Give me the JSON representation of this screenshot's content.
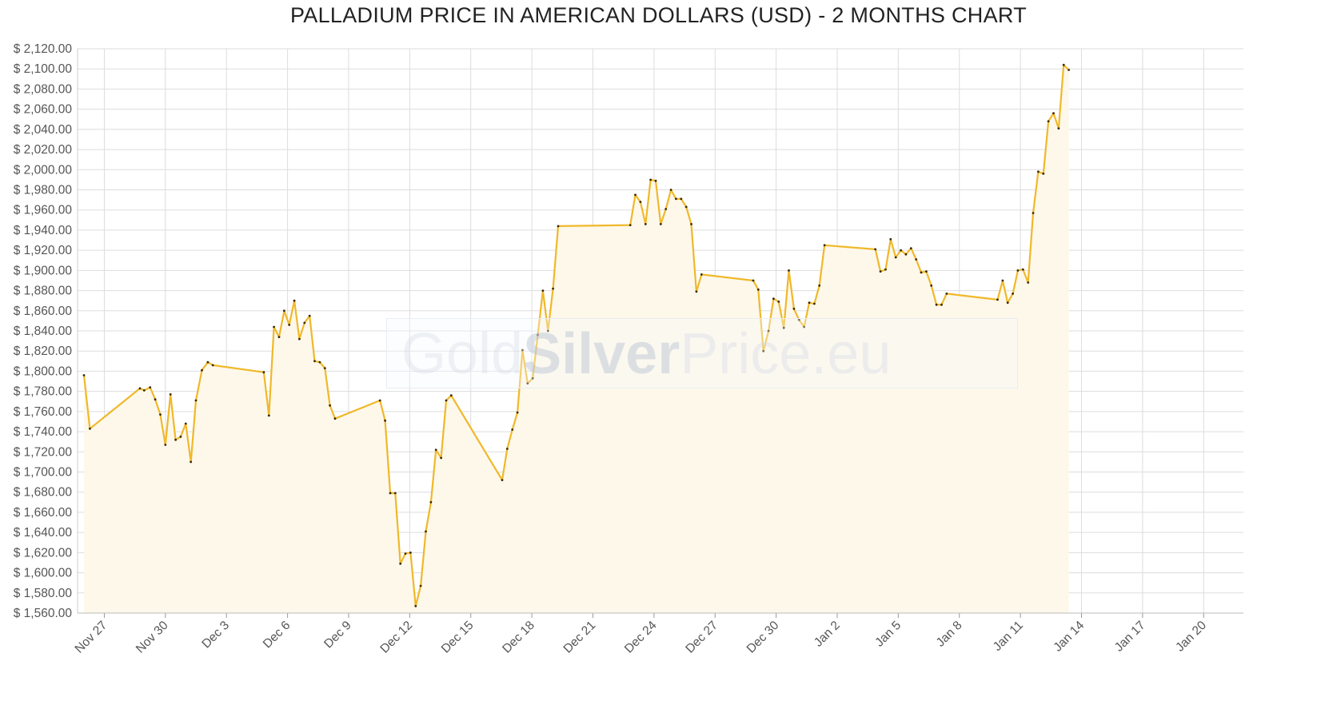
{
  "title": "PALLADIUM PRICE IN AMERICAN DOLLARS (USD) - 2 MONTHS CHART",
  "watermark": {
    "part1": "Gold",
    "part2": "Silver",
    "part3": "Price.eu"
  },
  "colors": {
    "line": "#f0b82a",
    "area": "#fdf8ea",
    "marker": "#3a2a00",
    "grid": "#dddddd",
    "axis_text": "#555555"
  },
  "chart_data": {
    "type": "area",
    "title": "PALLADIUM PRICE IN AMERICAN DOLLARS (USD) - 2 MONTHS CHART",
    "xlabel": "",
    "ylabel": "",
    "ylim": [
      1560,
      2120
    ],
    "xlim": [
      "2019-11-26T00:00",
      "2020-01-21T21:00"
    ],
    "y_tick_values": [
      1560,
      1580,
      1600,
      1620,
      1640,
      1660,
      1680,
      1700,
      1720,
      1740,
      1760,
      1780,
      1800,
      1820,
      1840,
      1860,
      1880,
      1900,
      1920,
      1940,
      1960,
      1980,
      2000,
      2020,
      2040,
      2060,
      2080,
      2100,
      2120
    ],
    "y_tick_labels": [
      "$ 1,560.00",
      "$ 1,580.00",
      "$ 1,600.00",
      "$ 1,620.00",
      "$ 1,640.00",
      "$ 1,660.00",
      "$ 1,680.00",
      "$ 1,700.00",
      "$ 1,720.00",
      "$ 1,740.00",
      "$ 1,760.00",
      "$ 1,780.00",
      "$ 1,800.00",
      "$ 1,820.00",
      "$ 1,840.00",
      "$ 1,860.00",
      "$ 1,880.00",
      "$ 1,900.00",
      "$ 1,920.00",
      "$ 1,940.00",
      "$ 1,960.00",
      "$ 1,980.00",
      "$ 2,000.00",
      "$ 2,020.00",
      "$ 2,040.00",
      "$ 2,060.00",
      "$ 2,080.00",
      "$ 2,100.00",
      "$ 2,120.00"
    ],
    "x_ticks": [
      {
        "date": "2019-11-27",
        "label": "Nov 27"
      },
      {
        "date": "2019-11-30",
        "label": "Nov 30"
      },
      {
        "date": "2019-12-03",
        "label": "Dec 3"
      },
      {
        "date": "2019-12-06",
        "label": "Dec 6"
      },
      {
        "date": "2019-12-09",
        "label": "Dec 9"
      },
      {
        "date": "2019-12-12",
        "label": "Dec 12"
      },
      {
        "date": "2019-12-15",
        "label": "Dec 15"
      },
      {
        "date": "2019-12-18",
        "label": "Dec 18"
      },
      {
        "date": "2019-12-21",
        "label": "Dec 21"
      },
      {
        "date": "2019-12-24",
        "label": "Dec 24"
      },
      {
        "date": "2019-12-27",
        "label": "Dec 27"
      },
      {
        "date": "2019-12-30",
        "label": "Dec 30"
      },
      {
        "date": "2020-01-02",
        "label": "Jan 2"
      },
      {
        "date": "2020-01-05",
        "label": "Jan 5"
      },
      {
        "date": "2020-01-08",
        "label": "Jan 8"
      },
      {
        "date": "2020-01-11",
        "label": "Jan 11"
      },
      {
        "date": "2020-01-14",
        "label": "Jan 14"
      },
      {
        "date": "2020-01-17",
        "label": "Jan 17"
      },
      {
        "date": "2020-01-20",
        "label": "Jan 20"
      }
    ],
    "grid": true,
    "legend": "none",
    "series": [
      {
        "points": [
          {
            "x": "2019-11-26T00:00",
            "y": 1796
          },
          {
            "x": "2019-11-26T07:00",
            "y": 1743
          },
          {
            "x": "2019-11-28T18:00",
            "y": 1783
          },
          {
            "x": "2019-11-28T23:00",
            "y": 1781
          },
          {
            "x": "2019-11-29T06:00",
            "y": 1784
          },
          {
            "x": "2019-11-29T12:00",
            "y": 1772
          },
          {
            "x": "2019-11-29T18:00",
            "y": 1757
          },
          {
            "x": "2019-11-30T00:00",
            "y": 1727
          },
          {
            "x": "2019-11-30T06:00",
            "y": 1777
          },
          {
            "x": "2019-11-30T12:00",
            "y": 1732
          },
          {
            "x": "2019-11-30T18:00",
            "y": 1735
          },
          {
            "x": "2019-12-01T00:00",
            "y": 1748
          },
          {
            "x": "2019-12-01T06:00",
            "y": 1710
          },
          {
            "x": "2019-12-01T12:00",
            "y": 1771
          },
          {
            "x": "2019-12-01T19:00",
            "y": 1801
          },
          {
            "x": "2019-12-02T02:00",
            "y": 1809
          },
          {
            "x": "2019-12-02T08:00",
            "y": 1806
          },
          {
            "x": "2019-12-04T20:00",
            "y": 1799
          },
          {
            "x": "2019-12-05T02:00",
            "y": 1756
          },
          {
            "x": "2019-12-05T08:00",
            "y": 1844
          },
          {
            "x": "2019-12-05T14:00",
            "y": 1834
          },
          {
            "x": "2019-12-05T20:00",
            "y": 1860
          },
          {
            "x": "2019-12-06T02:00",
            "y": 1846
          },
          {
            "x": "2019-12-06T08:00",
            "y": 1870
          },
          {
            "x": "2019-12-06T14:00",
            "y": 1832
          },
          {
            "x": "2019-12-06T20:00",
            "y": 1848
          },
          {
            "x": "2019-12-07T02:00",
            "y": 1855
          },
          {
            "x": "2019-12-07T08:00",
            "y": 1810
          },
          {
            "x": "2019-12-07T14:00",
            "y": 1809
          },
          {
            "x": "2019-12-07T20:00",
            "y": 1803
          },
          {
            "x": "2019-12-08T02:00",
            "y": 1766
          },
          {
            "x": "2019-12-08T08:00",
            "y": 1753
          },
          {
            "x": "2019-12-10T13:00",
            "y": 1771
          },
          {
            "x": "2019-12-10T19:00",
            "y": 1751
          },
          {
            "x": "2019-12-11T01:00",
            "y": 1679
          },
          {
            "x": "2019-12-11T07:00",
            "y": 1679
          },
          {
            "x": "2019-12-11T13:00",
            "y": 1609
          },
          {
            "x": "2019-12-11T19:00",
            "y": 1619
          },
          {
            "x": "2019-12-12T01:00",
            "y": 1620
          },
          {
            "x": "2019-12-12T07:00",
            "y": 1567
          },
          {
            "x": "2019-12-12T13:00",
            "y": 1587
          },
          {
            "x": "2019-12-12T19:00",
            "y": 1641
          },
          {
            "x": "2019-12-13T01:00",
            "y": 1670
          },
          {
            "x": "2019-12-13T07:00",
            "y": 1722
          },
          {
            "x": "2019-12-13T13:00",
            "y": 1714
          },
          {
            "x": "2019-12-13T19:00",
            "y": 1771
          },
          {
            "x": "2019-12-14T01:00",
            "y": 1776
          },
          {
            "x": "2019-12-16T13:00",
            "y": 1692
          },
          {
            "x": "2019-12-16T19:00",
            "y": 1723
          },
          {
            "x": "2019-12-17T01:00",
            "y": 1742
          },
          {
            "x": "2019-12-17T07:00",
            "y": 1759
          },
          {
            "x": "2019-12-17T13:00",
            "y": 1821
          },
          {
            "x": "2019-12-17T19:00",
            "y": 1788
          },
          {
            "x": "2019-12-18T01:00",
            "y": 1793
          },
          {
            "x": "2019-12-18T07:00",
            "y": 1836
          },
          {
            "x": "2019-12-18T13:00",
            "y": 1880
          },
          {
            "x": "2019-12-18T19:00",
            "y": 1840
          },
          {
            "x": "2019-12-19T01:00",
            "y": 1882
          },
          {
            "x": "2019-12-19T07:00",
            "y": 1944
          },
          {
            "x": "2019-12-22T20:00",
            "y": 1945
          },
          {
            "x": "2019-12-23T02:00",
            "y": 1975
          },
          {
            "x": "2019-12-23T08:00",
            "y": 1968
          },
          {
            "x": "2019-12-23T14:00",
            "y": 1946
          },
          {
            "x": "2019-12-23T20:00",
            "y": 1990
          },
          {
            "x": "2019-12-24T02:00",
            "y": 1989
          },
          {
            "x": "2019-12-24T08:00",
            "y": 1946
          },
          {
            "x": "2019-12-24T14:00",
            "y": 1961
          },
          {
            "x": "2019-12-24T20:00",
            "y": 1980
          },
          {
            "x": "2019-12-25T02:00",
            "y": 1971
          },
          {
            "x": "2019-12-25T08:00",
            "y": 1971
          },
          {
            "x": "2019-12-25T14:00",
            "y": 1963
          },
          {
            "x": "2019-12-25T20:00",
            "y": 1946
          },
          {
            "x": "2019-12-26T02:00",
            "y": 1879
          },
          {
            "x": "2019-12-26T08:00",
            "y": 1896
          },
          {
            "x": "2019-12-28T21:00",
            "y": 1890
          },
          {
            "x": "2019-12-29T03:00",
            "y": 1881
          },
          {
            "x": "2019-12-29T09:00",
            "y": 1820
          },
          {
            "x": "2019-12-29T15:00",
            "y": 1840
          },
          {
            "x": "2019-12-29T21:00",
            "y": 1872
          },
          {
            "x": "2019-12-30T03:00",
            "y": 1869
          },
          {
            "x": "2019-12-30T09:00",
            "y": 1843
          },
          {
            "x": "2019-12-30T15:00",
            "y": 1900
          },
          {
            "x": "2019-12-30T21:00",
            "y": 1862
          },
          {
            "x": "2019-12-31T03:00",
            "y": 1851
          },
          {
            "x": "2019-12-31T09:00",
            "y": 1844
          },
          {
            "x": "2019-12-31T15:00",
            "y": 1868
          },
          {
            "x": "2019-12-31T21:00",
            "y": 1867
          },
          {
            "x": "2020-01-01T03:00",
            "y": 1885
          },
          {
            "x": "2020-01-01T09:00",
            "y": 1925
          },
          {
            "x": "2020-01-03T21:00",
            "y": 1921
          },
          {
            "x": "2020-01-04T03:00",
            "y": 1899
          },
          {
            "x": "2020-01-04T09:00",
            "y": 1901
          },
          {
            "x": "2020-01-04T15:00",
            "y": 1931
          },
          {
            "x": "2020-01-04T21:00",
            "y": 1913
          },
          {
            "x": "2020-01-05T03:00",
            "y": 1920
          },
          {
            "x": "2020-01-05T09:00",
            "y": 1916
          },
          {
            "x": "2020-01-05T15:00",
            "y": 1922
          },
          {
            "x": "2020-01-05T21:00",
            "y": 1911
          },
          {
            "x": "2020-01-06T03:00",
            "y": 1898
          },
          {
            "x": "2020-01-06T09:00",
            "y": 1899
          },
          {
            "x": "2020-01-06T15:00",
            "y": 1885
          },
          {
            "x": "2020-01-06T21:00",
            "y": 1866
          },
          {
            "x": "2020-01-07T03:00",
            "y": 1866
          },
          {
            "x": "2020-01-07T09:00",
            "y": 1877
          },
          {
            "x": "2020-01-09T21:00",
            "y": 1871
          },
          {
            "x": "2020-01-10T03:00",
            "y": 1890
          },
          {
            "x": "2020-01-10T09:00",
            "y": 1868
          },
          {
            "x": "2020-01-10T15:00",
            "y": 1877
          },
          {
            "x": "2020-01-10T21:00",
            "y": 1900
          },
          {
            "x": "2020-01-11T03:00",
            "y": 1901
          },
          {
            "x": "2020-01-11T09:00",
            "y": 1888
          },
          {
            "x": "2020-01-11T15:00",
            "y": 1957
          },
          {
            "x": "2020-01-11T21:00",
            "y": 1998
          },
          {
            "x": "2020-01-12T03:00",
            "y": 1996
          },
          {
            "x": "2020-01-12T09:00",
            "y": 2048
          },
          {
            "x": "2020-01-12T15:00",
            "y": 2056
          },
          {
            "x": "2020-01-12T21:00",
            "y": 2041
          },
          {
            "x": "2020-01-13T03:00",
            "y": 2104
          },
          {
            "x": "2020-01-13T09:00",
            "y": 2099
          }
        ]
      }
    ]
  }
}
